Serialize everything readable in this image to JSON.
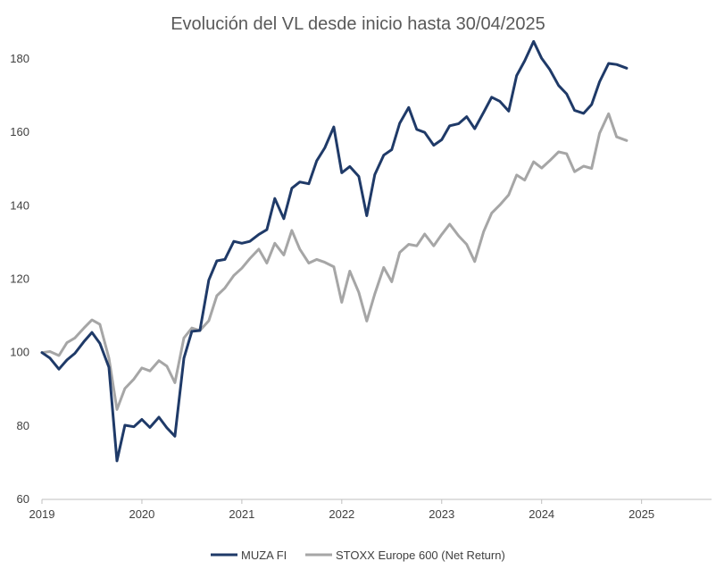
{
  "chart_data": {
    "type": "line",
    "title": "Evolución del VL desde inicio hasta 30/04/2025",
    "xlabel": "",
    "ylabel": "",
    "xlim": [
      2019.0,
      2025.7
    ],
    "ylim": [
      60,
      190
    ],
    "x_ticks": [
      2019,
      2020,
      2021,
      2022,
      2023,
      2024,
      2025
    ],
    "x_tick_labels": [
      "2019",
      "2020",
      "2021",
      "2022",
      "2023",
      "2024",
      "2025"
    ],
    "y_ticks": [
      60,
      80,
      100,
      120,
      140,
      160,
      180
    ],
    "y_tick_labels": [
      "60",
      "80",
      "100",
      "120",
      "140",
      "160",
      "180"
    ],
    "grid": false,
    "legend_position": "bottom",
    "series": [
      {
        "name": "MUZA FI",
        "color": "#1f3a68",
        "points": [
          [
            2019.0,
            100.0
          ],
          [
            2019.08,
            98.5
          ],
          [
            2019.17,
            95.5
          ],
          [
            2019.25,
            98.0
          ],
          [
            2019.33,
            99.8
          ],
          [
            2019.42,
            103.0
          ],
          [
            2019.5,
            105.5
          ],
          [
            2019.58,
            102.5
          ],
          [
            2019.67,
            96.0
          ],
          [
            2019.75,
            70.5
          ],
          [
            2019.83,
            80.2
          ],
          [
            2019.92,
            79.8
          ],
          [
            2020.0,
            81.8
          ],
          [
            2020.08,
            79.6
          ],
          [
            2020.17,
            82.4
          ],
          [
            2020.25,
            79.5
          ],
          [
            2020.33,
            77.2
          ],
          [
            2020.42,
            98.5
          ],
          [
            2020.5,
            105.8
          ],
          [
            2020.58,
            106.0
          ],
          [
            2020.67,
            119.8
          ],
          [
            2020.75,
            125.0
          ],
          [
            2020.83,
            125.4
          ],
          [
            2020.92,
            130.3
          ],
          [
            2021.0,
            129.8
          ],
          [
            2021.08,
            130.3
          ],
          [
            2021.17,
            132.2
          ],
          [
            2021.25,
            133.5
          ],
          [
            2021.33,
            142.0
          ],
          [
            2021.42,
            136.5
          ],
          [
            2021.5,
            144.8
          ],
          [
            2021.58,
            146.5
          ],
          [
            2021.67,
            146.0
          ],
          [
            2021.75,
            152.3
          ],
          [
            2021.83,
            155.8
          ],
          [
            2021.92,
            161.5
          ],
          [
            2022.0,
            149.0
          ],
          [
            2022.08,
            150.7
          ],
          [
            2022.17,
            148.0
          ],
          [
            2022.25,
            137.3
          ],
          [
            2022.33,
            148.5
          ],
          [
            2022.42,
            153.8
          ],
          [
            2022.5,
            155.3
          ],
          [
            2022.58,
            162.5
          ],
          [
            2022.67,
            166.8
          ],
          [
            2022.75,
            160.8
          ],
          [
            2022.83,
            160.0
          ],
          [
            2022.92,
            156.5
          ],
          [
            2023.0,
            158.0
          ],
          [
            2023.08,
            161.8
          ],
          [
            2023.17,
            162.4
          ],
          [
            2023.25,
            164.3
          ],
          [
            2023.33,
            161.0
          ],
          [
            2023.42,
            165.5
          ],
          [
            2023.5,
            169.6
          ],
          [
            2023.58,
            168.5
          ],
          [
            2023.67,
            165.8
          ],
          [
            2023.75,
            175.5
          ],
          [
            2023.83,
            179.5
          ],
          [
            2023.92,
            184.8
          ],
          [
            2024.0,
            180.2
          ],
          [
            2024.08,
            177.2
          ],
          [
            2024.17,
            172.8
          ],
          [
            2024.25,
            170.5
          ],
          [
            2024.33,
            166.0
          ],
          [
            2024.42,
            165.2
          ],
          [
            2024.5,
            167.6
          ],
          [
            2024.58,
            173.8
          ],
          [
            2024.67,
            178.8
          ],
          [
            2024.75,
            178.5
          ],
          [
            2024.85,
            177.5
          ]
        ]
      },
      {
        "name": "STOXX Europe 600 (Net Return)",
        "color": "#a6a6a6",
        "points": [
          [
            2019.0,
            100.0
          ],
          [
            2019.08,
            100.3
          ],
          [
            2019.17,
            99.2
          ],
          [
            2019.25,
            102.7
          ],
          [
            2019.33,
            104.0
          ],
          [
            2019.42,
            106.7
          ],
          [
            2019.5,
            108.9
          ],
          [
            2019.58,
            107.7
          ],
          [
            2019.67,
            98.5
          ],
          [
            2019.75,
            84.5
          ],
          [
            2019.83,
            90.2
          ],
          [
            2019.92,
            92.8
          ],
          [
            2020.0,
            95.8
          ],
          [
            2020.08,
            95.0
          ],
          [
            2020.17,
            97.8
          ],
          [
            2020.25,
            96.3
          ],
          [
            2020.33,
            91.8
          ],
          [
            2020.42,
            104.0
          ],
          [
            2020.5,
            106.7
          ],
          [
            2020.58,
            106.0
          ],
          [
            2020.67,
            108.7
          ],
          [
            2020.75,
            115.5
          ],
          [
            2020.83,
            117.6
          ],
          [
            2020.92,
            121.0
          ],
          [
            2021.0,
            123.0
          ],
          [
            2021.08,
            125.6
          ],
          [
            2021.17,
            128.2
          ],
          [
            2021.25,
            124.4
          ],
          [
            2021.33,
            129.8
          ],
          [
            2021.42,
            126.6
          ],
          [
            2021.5,
            133.3
          ],
          [
            2021.58,
            128.2
          ],
          [
            2021.67,
            124.4
          ],
          [
            2021.75,
            125.4
          ],
          [
            2021.83,
            124.6
          ],
          [
            2021.92,
            123.4
          ],
          [
            2022.0,
            113.7
          ],
          [
            2022.08,
            122.2
          ],
          [
            2022.17,
            116.4
          ],
          [
            2022.25,
            108.6
          ],
          [
            2022.33,
            116.0
          ],
          [
            2022.42,
            123.2
          ],
          [
            2022.5,
            119.3
          ],
          [
            2022.58,
            127.3
          ],
          [
            2022.67,
            129.5
          ],
          [
            2022.75,
            129.1
          ],
          [
            2022.83,
            132.3
          ],
          [
            2022.92,
            129.1
          ],
          [
            2023.0,
            132.2
          ],
          [
            2023.08,
            135.0
          ],
          [
            2023.17,
            131.8
          ],
          [
            2023.25,
            129.5
          ],
          [
            2023.33,
            124.8
          ],
          [
            2023.42,
            133.0
          ],
          [
            2023.5,
            138.0
          ],
          [
            2023.58,
            140.2
          ],
          [
            2023.67,
            143.0
          ],
          [
            2023.75,
            148.4
          ],
          [
            2023.83,
            147.0
          ],
          [
            2023.92,
            152.0
          ],
          [
            2024.0,
            150.3
          ],
          [
            2024.08,
            152.3
          ],
          [
            2024.17,
            154.7
          ],
          [
            2024.25,
            154.2
          ],
          [
            2024.33,
            149.3
          ],
          [
            2024.42,
            150.8
          ],
          [
            2024.5,
            150.2
          ],
          [
            2024.58,
            159.8
          ],
          [
            2024.67,
            165.1
          ],
          [
            2024.75,
            158.8
          ],
          [
            2024.85,
            157.8
          ]
        ]
      }
    ]
  }
}
